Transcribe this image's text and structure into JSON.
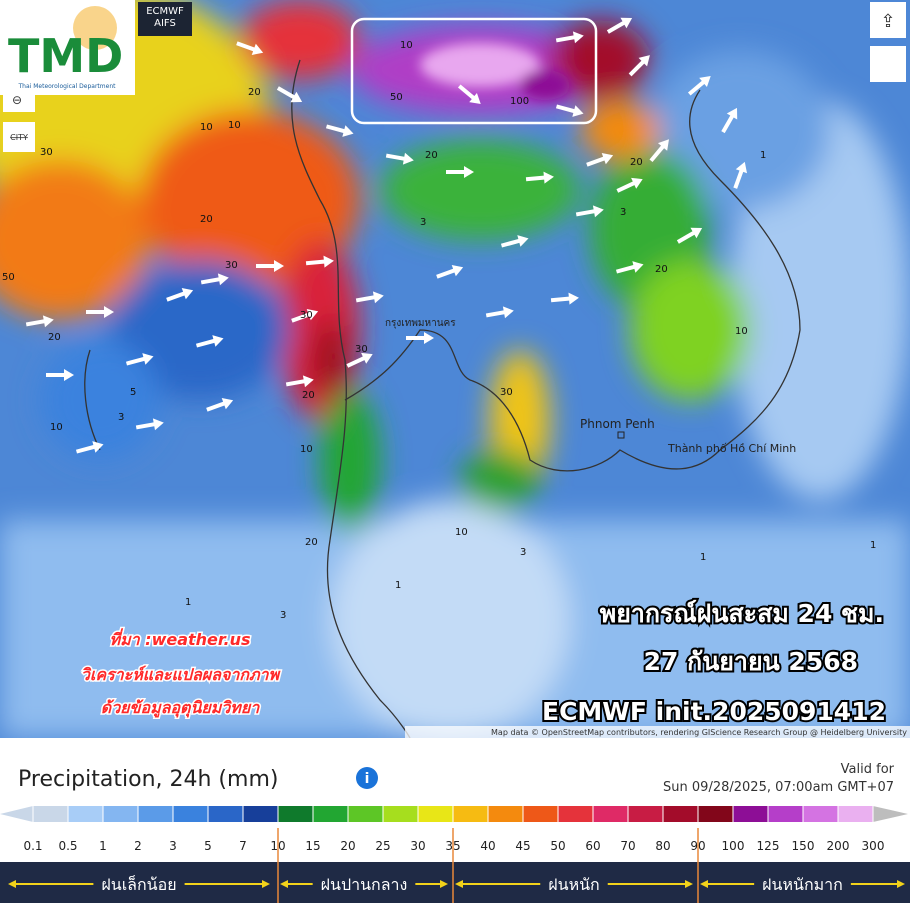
{
  "header": {
    "logo": "TMD",
    "logo_subtitle": "Thai Meteorological Department",
    "model": "ECMWF AIFS",
    "city_button": "CITY"
  },
  "overlay": {
    "title": "พยากรณ์ฝนสะสม 24 ชม.",
    "date": "27 กันยายน 2568",
    "init": "ECMWF init.2025091412"
  },
  "source": {
    "line1": "ที่มา :weather.us",
    "line2": "วิเคราะห์และแปลผลจากภาพ",
    "line3": "ด้วยข้อมูลอุตุนิยมวิทยา"
  },
  "places": [
    "Phnom Penh",
    "Thành phố Hồ Chí Minh",
    "กรุงเทพมหานคร"
  ],
  "contour_labels": [
    "20",
    "10",
    "30",
    "20",
    "50",
    "20",
    "10",
    "30",
    "10",
    "5",
    "3",
    "10",
    "30",
    "20",
    "10",
    "50",
    "100",
    "20",
    "20",
    "30",
    "20",
    "1",
    "3",
    "1",
    "3",
    "10",
    "1",
    "3",
    "1",
    "20",
    "30",
    "10",
    "3",
    "1"
  ],
  "attribution": "Map data © OpenStreetMap contributors, rendering GIScience Research Group @ Heidelberg University",
  "legend": {
    "title": "Precipitation, 24h (mm)",
    "valid_label": "Valid for",
    "valid_time": "Sun 09/28/2025, 07:00am GMT+07",
    "stops": [
      {
        "value": 0.1,
        "color": "#c9d7e8"
      },
      {
        "value": 0.5,
        "color": "#a8cdf7"
      },
      {
        "value": 1,
        "color": "#84b6f1"
      },
      {
        "value": 2,
        "color": "#5b9be8"
      },
      {
        "value": 3,
        "color": "#3a82de"
      },
      {
        "value": 5,
        "color": "#2a66c8"
      },
      {
        "value": 7,
        "color": "#173f9a"
      },
      {
        "value": 10,
        "color": "#0f7a2c"
      },
      {
        "value": 15,
        "color": "#22a632"
      },
      {
        "value": 20,
        "color": "#5dc626"
      },
      {
        "value": 25,
        "color": "#a6de1e"
      },
      {
        "value": 30,
        "color": "#e8e617"
      },
      {
        "value": 35,
        "color": "#f6bb12"
      },
      {
        "value": 40,
        "color": "#f48a0e"
      },
      {
        "value": 45,
        "color": "#ee5818"
      },
      {
        "value": 50,
        "color": "#e5333b"
      },
      {
        "value": 60,
        "color": "#df2a66"
      },
      {
        "value": 70,
        "color": "#c81c44"
      },
      {
        "value": 80,
        "color": "#a30c2a"
      },
      {
        "value": 90,
        "color": "#82061a"
      },
      {
        "value": 100,
        "color": "#8d0e96"
      },
      {
        "value": 125,
        "color": "#b53ec9"
      },
      {
        "value": 150,
        "color": "#d473e2"
      },
      {
        "value": 200,
        "color": "#eab0f0"
      },
      {
        "value": 300,
        "color": "#bdbdbd"
      }
    ],
    "categories": [
      "ฝนเล็กน้อย",
      "ฝนปานกลาง",
      "ฝนหนัก",
      "ฝนหนักมาก"
    ]
  }
}
